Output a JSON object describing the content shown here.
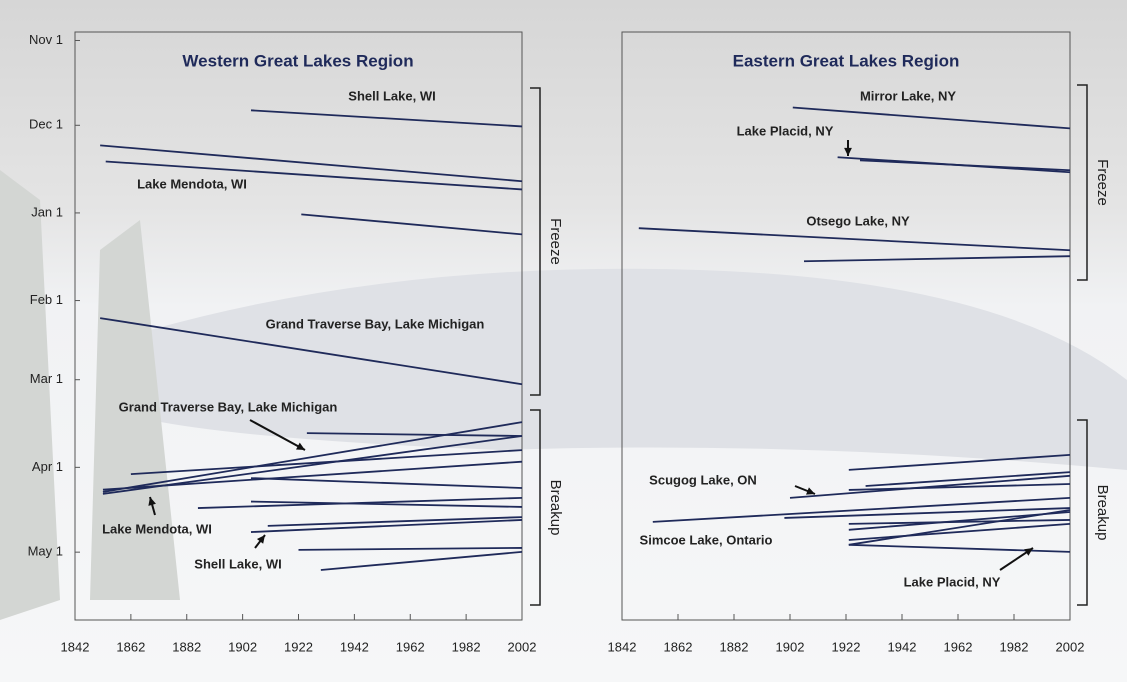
{
  "chart_data": [
    {
      "type": "line",
      "title": "Western Great Lakes Region",
      "xlim": [
        1842,
        2002
      ],
      "xticks": [
        1842,
        1862,
        1882,
        1902,
        1922,
        1942,
        1962,
        1982,
        2002
      ],
      "ylim": [
        205,
        -3
      ],
      "yticks": [
        {
          "value": 0,
          "label": "Nov 1"
        },
        {
          "value": 30,
          "label": "Dec 1"
        },
        {
          "value": 61,
          "label": "Jan 1"
        },
        {
          "value": 92,
          "label": "Feb 1"
        },
        {
          "value": 120,
          "label": "Mar 1"
        },
        {
          "value": 151,
          "label": "Apr 1"
        },
        {
          "value": 181,
          "label": "May 1"
        }
      ],
      "color": "#1f2a5a",
      "series": [
        {
          "x": [
            1905,
            2002
          ],
          "values": [
            24.7,
            30.4
          ]
        },
        {
          "x": [
            1851,
            2002
          ],
          "values": [
            37.1,
            49.8
          ]
        },
        {
          "x": [
            1853,
            2002
          ],
          "values": [
            42.8,
            52.7
          ]
        },
        {
          "x": [
            1923,
            2002
          ],
          "values": [
            61.5,
            68.6
          ]
        },
        {
          "x": [
            1851,
            2002
          ],
          "values": [
            98.2,
            121.6
          ]
        },
        {
          "x": [
            1925,
            2002
          ],
          "values": [
            138.9,
            139.9
          ]
        },
        {
          "x": [
            1852,
            2002
          ],
          "values": [
            159.7,
            135
          ]
        },
        {
          "x": [
            1852,
            2002
          ],
          "values": [
            160.4,
            139.9
          ]
        },
        {
          "x": [
            1862,
            2002
          ],
          "values": [
            153.4,
            144.9
          ]
        },
        {
          "x": [
            1852,
            2002
          ],
          "values": [
            158.9,
            149
          ]
        },
        {
          "x": [
            1905,
            2002
          ],
          "values": [
            154.8,
            158.3
          ]
        },
        {
          "x": [
            1886,
            2002
          ],
          "values": [
            165.4,
            161.8
          ]
        },
        {
          "x": [
            1905,
            2002
          ],
          "values": [
            163.1,
            165
          ]
        },
        {
          "x": [
            1911,
            2002
          ],
          "values": [
            171.7,
            168.6
          ]
        },
        {
          "x": [
            1905,
            2002
          ],
          "values": [
            173.9,
            169.6
          ]
        },
        {
          "x": [
            1922,
            2002
          ],
          "values": [
            180.2,
            179.5
          ]
        },
        {
          "x": [
            1930,
            2002
          ],
          "values": [
            187.3,
            180.9
          ]
        }
      ],
      "annotations": [
        "Shell Lake, WI",
        "Lake Mendota, WI",
        "Grand Traverse Bay, Lake Michigan",
        "Grand Traverse Bay, Lake Michigan",
        "Lake Mendota, WI",
        "Shell Lake, WI"
      ],
      "brackets": [
        "Freeze",
        "Breakup"
      ]
    },
    {
      "type": "line",
      "title": "Eastern Great Lakes Region",
      "xlim": [
        1842,
        2002
      ],
      "xticks": [
        1842,
        1862,
        1882,
        1902,
        1922,
        1942,
        1962,
        1982,
        2002
      ],
      "ylim": [
        205,
        -3
      ],
      "color": "#1f2a5a",
      "series": [
        {
          "x": [
            1903,
            2002
          ],
          "values": [
            23.7,
            31.1
          ]
        },
        {
          "x": [
            1919,
            2002
          ],
          "values": [
            41.3,
            46.6
          ]
        },
        {
          "x": [
            1927,
            2002
          ],
          "values": [
            42.4,
            45.9
          ]
        },
        {
          "x": [
            1848,
            2002
          ],
          "values": [
            66.4,
            74.2
          ]
        },
        {
          "x": [
            1907,
            2002
          ],
          "values": [
            78.1,
            76.3
          ]
        },
        {
          "x": [
            1923,
            2002
          ],
          "values": [
            151.9,
            146.6
          ]
        },
        {
          "x": [
            1929,
            2002
          ],
          "values": [
            157.6,
            152.7
          ]
        },
        {
          "x": [
            1902,
            2002
          ],
          "values": [
            161.8,
            154
          ]
        },
        {
          "x": [
            1923,
            2002
          ],
          "values": [
            159,
            156.9
          ]
        },
        {
          "x": [
            1853,
            2002
          ],
          "values": [
            170.3,
            161.8
          ]
        },
        {
          "x": [
            1900,
            2002
          ],
          "values": [
            168.9,
            165.4
          ]
        },
        {
          "x": [
            1923,
            2002
          ],
          "values": [
            173.1,
            166.8
          ]
        },
        {
          "x": [
            1923,
            2002
          ],
          "values": [
            176.7,
            171
          ]
        },
        {
          "x": [
            1923,
            2002
          ],
          "values": [
            178.4,
            166.1
          ]
        },
        {
          "x": [
            1923,
            2002
          ],
          "values": [
            178.4,
            180.9
          ]
        },
        {
          "x": [
            1923,
            2002
          ],
          "values": [
            171,
            169.6
          ]
        }
      ],
      "annotations": [
        "Mirror Lake, NY",
        "Lake Placid, NY",
        "Otsego Lake, NY",
        "Scugog Lake, ON",
        "Simcoe Lake, Ontario",
        "Lake Placid, NY"
      ],
      "brackets": [
        "Freeze",
        "Breakup"
      ]
    }
  ]
}
